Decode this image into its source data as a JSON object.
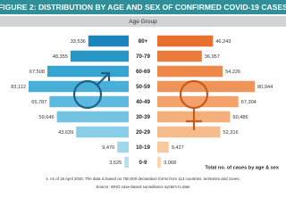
{
  "chart_data": {
    "type": "pyramid",
    "title": "FIGURE 2: DISTRIBUTION BY AGE AND SEX OF CONFIRMED COVID-19 CASES",
    "subtitle": "Age Group",
    "categories": [
      "80+",
      "70-79",
      "60-69",
      "50-59",
      "40-49",
      "30-39",
      "20-29",
      "10-19",
      "0-9"
    ],
    "series": [
      {
        "name": "MALE",
        "side": "left",
        "colors": [
          "#1a86bd",
          "#2797c8",
          "#36a4d1",
          "#48afd8",
          "#5dbade",
          "#73c4e2",
          "#8acde7",
          "#a1d7eb",
          "#b8e0ef"
        ],
        "values": [
          33536,
          48355,
          67508,
          83112,
          65787,
          59646,
          43639,
          9470,
          3525
        ],
        "value_labels": [
          "33,536",
          "48,355",
          "67,508",
          "83,112",
          "65,787",
          "59,646",
          "43,639",
          "9,470",
          "3,525"
        ]
      },
      {
        "name": "FEMALE",
        "side": "right",
        "colors": [
          "#e86f2c",
          "#eb7b3a",
          "#ee884a",
          "#f0955a",
          "#f2a26a",
          "#f4af7b",
          "#f6bc8d",
          "#f8c99f",
          "#fad6b1"
        ],
        "values": [
          46243,
          36957,
          54226,
          80944,
          67304,
          60486,
          52316,
          9427,
          3068
        ],
        "value_labels": [
          "46,243",
          "36,957",
          "54,226",
          "80,944",
          "67,304",
          "60,486",
          "52,316",
          "9,427",
          "3,068"
        ]
      }
    ],
    "legend_note": "Total no. of cases by age & sex",
    "footnote": "1. As of 18 April 2020. The data is based on 750,000 declaration forms from 113 countries, territories and zones.",
    "source": "Source: WHO case-based surveillance system to date"
  }
}
